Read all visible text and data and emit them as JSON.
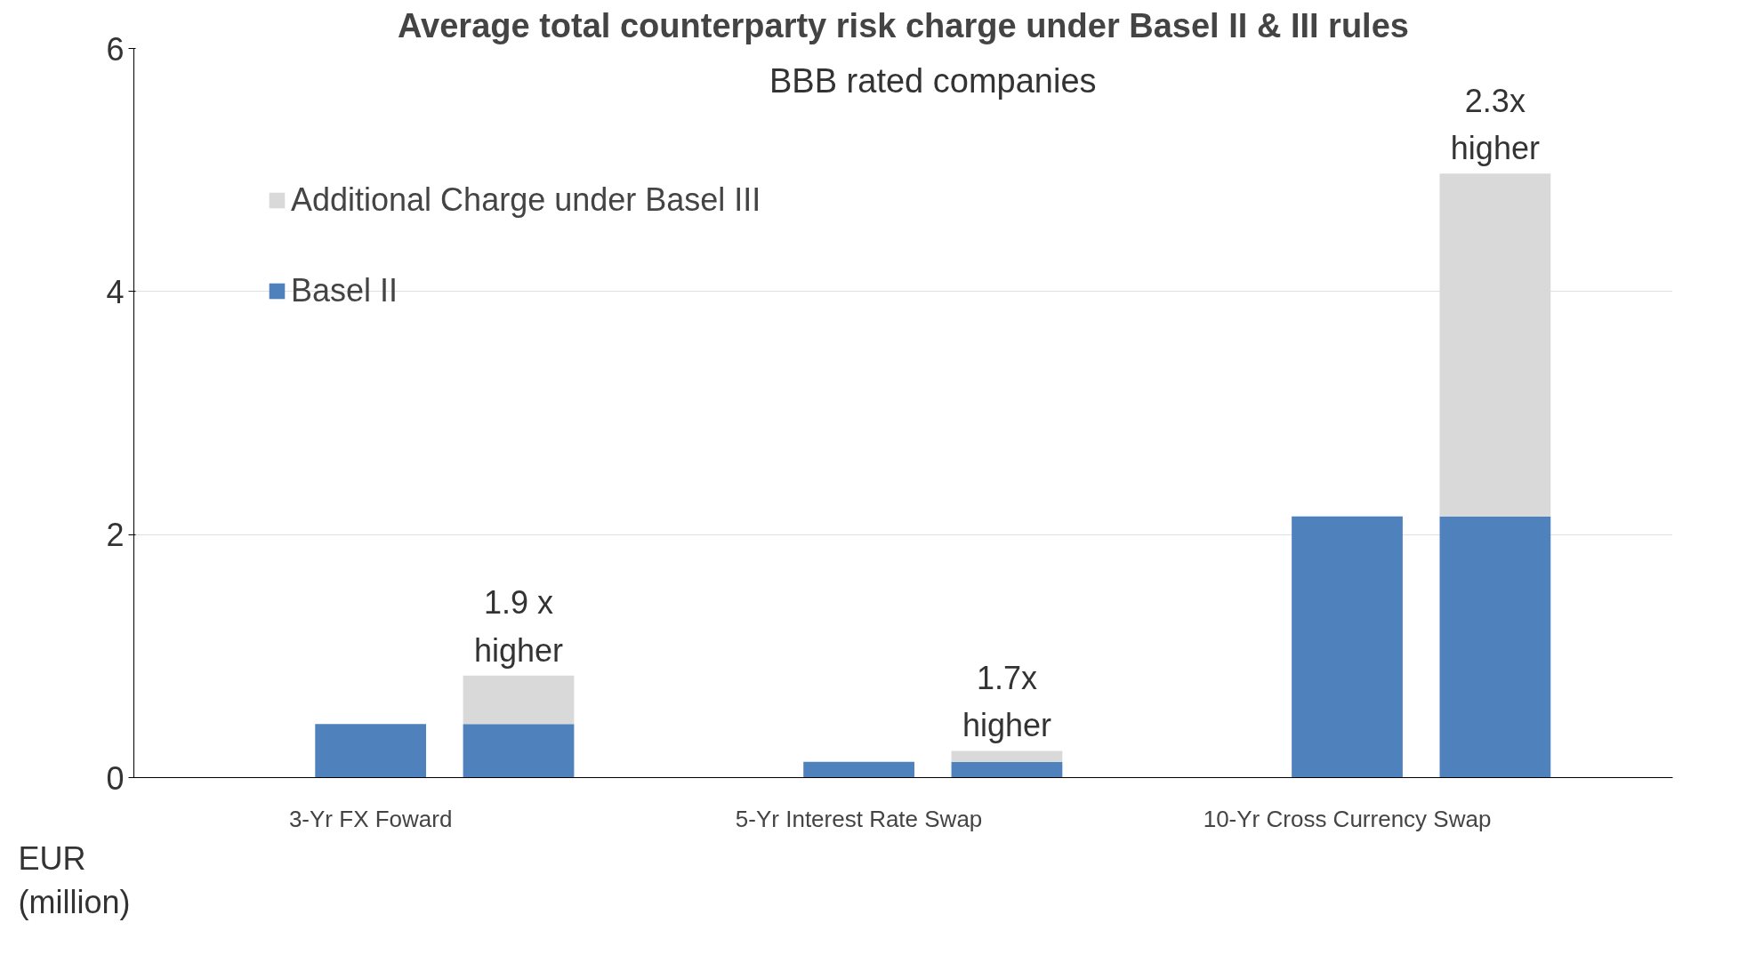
{
  "chart_data": {
    "type": "bar",
    "stacked": true,
    "title": "Average total counterparty risk charge under Basel II & III rules",
    "subtitle": "BBB rated companies",
    "ylabel": "EUR\n(million)",
    "categories": [
      "3-Yr FX Foward",
      null,
      "5-Yr Interest Rate Swap",
      null,
      "10-Yr Cross Currency Swap",
      null
    ],
    "series": [
      {
        "name": "Basel II",
        "color": "#4f81bd",
        "values": [
          0.44,
          0.44,
          0.13,
          0.13,
          2.15,
          2.15
        ]
      },
      {
        "name": "Additional Charge under Basel III",
        "color": "#d9d9d9",
        "values": [
          null,
          0.4,
          null,
          0.09,
          null,
          2.82
        ]
      }
    ],
    "ylim": [
      0,
      6
    ],
    "yticks": [
      0,
      2,
      4,
      6
    ],
    "grid": "y",
    "legend": "top left",
    "annotations": [
      {
        "text": "1.9 x\nhigher",
        "y": 0.84
      },
      {
        "text": "1.7x\nhigher",
        "y": 0.22
      },
      {
        "text": "2.3x\nhigher",
        "y": 4.97
      }
    ]
  }
}
